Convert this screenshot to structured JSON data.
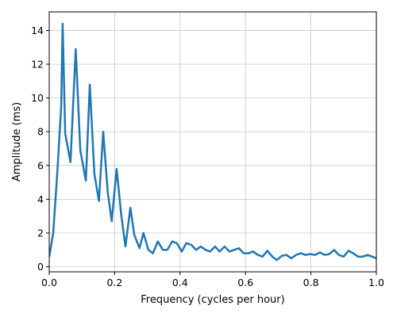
{
  "chart_data": {
    "type": "line",
    "title": "",
    "xlabel": "Frequency (cycles per hour)",
    "ylabel": "Amplitude (ms)",
    "xlim": [
      0,
      1.0
    ],
    "ylim": [
      -0.3,
      15.1
    ],
    "grid": true,
    "xticks": [
      {
        "value": 0.0,
        "label": "0.0"
      },
      {
        "value": 0.2,
        "label": "0.2"
      },
      {
        "value": 0.4,
        "label": "0.4"
      },
      {
        "value": 0.6,
        "label": "0.6"
      },
      {
        "value": 0.8,
        "label": "0.8"
      },
      {
        "value": 1.0,
        "label": "1.0"
      }
    ],
    "yticks": [
      {
        "value": 0,
        "label": "0"
      },
      {
        "value": 2,
        "label": "2"
      },
      {
        "value": 4,
        "label": "4"
      },
      {
        "value": 6,
        "label": "6"
      },
      {
        "value": 8,
        "label": "8"
      },
      {
        "value": 10,
        "label": "10"
      },
      {
        "value": 12,
        "label": "12"
      },
      {
        "value": 14,
        "label": "14"
      }
    ],
    "series": [
      {
        "color": "#1f77b4",
        "x": [
          0.0,
          0.0122,
          0.0244,
          0.0366,
          0.041,
          0.0488,
          0.065,
          0.081,
          0.095,
          0.112,
          0.124,
          0.138,
          0.152,
          0.165,
          0.179,
          0.191,
          0.206,
          0.22,
          0.233,
          0.248,
          0.26,
          0.276,
          0.288,
          0.303,
          0.317,
          0.332,
          0.347,
          0.361,
          0.376,
          0.39,
          0.405,
          0.419,
          0.434,
          0.449,
          0.463,
          0.478,
          0.492,
          0.507,
          0.521,
          0.536,
          0.551,
          0.565,
          0.58,
          0.594,
          0.609,
          0.623,
          0.638,
          0.652,
          0.667,
          0.682,
          0.696,
          0.711,
          0.725,
          0.74,
          0.754,
          0.769,
          0.784,
          0.798,
          0.813,
          0.827,
          0.842,
          0.856,
          0.871,
          0.885,
          0.9,
          0.915,
          0.929,
          0.944,
          0.958,
          0.973,
          0.987,
          1.0
        ],
        "y": [
          0.6,
          2.0,
          5.5,
          9.5,
          14.4,
          7.9,
          6.2,
          12.9,
          6.9,
          5.1,
          10.8,
          5.5,
          3.9,
          8.0,
          4.4,
          2.7,
          5.8,
          3.1,
          1.2,
          3.5,
          1.9,
          1.1,
          2.0,
          1.0,
          0.8,
          1.5,
          1.0,
          1.0,
          1.5,
          1.4,
          0.9,
          1.4,
          1.3,
          1.0,
          1.2,
          1.0,
          0.9,
          1.2,
          0.9,
          1.2,
          0.9,
          1.0,
          1.1,
          0.8,
          0.8,
          0.9,
          0.7,
          0.6,
          0.95,
          0.6,
          0.4,
          0.65,
          0.7,
          0.5,
          0.7,
          0.8,
          0.7,
          0.75,
          0.7,
          0.85,
          0.7,
          0.75,
          1.0,
          0.7,
          0.6,
          0.95,
          0.8,
          0.6,
          0.6,
          0.7,
          0.6,
          0.5
        ]
      }
    ]
  }
}
